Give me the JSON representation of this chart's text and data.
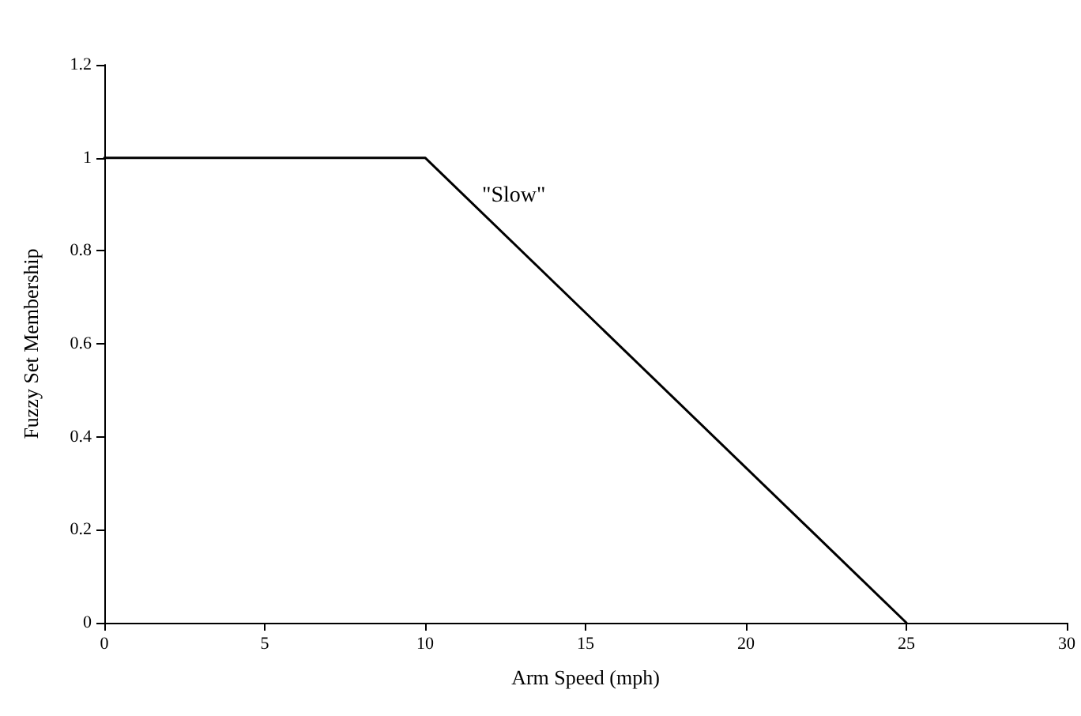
{
  "chart_data": {
    "type": "line",
    "xlabel": "Arm Speed (mph)",
    "ylabel": "Fuzzy Set Membership",
    "x": [
      0,
      10,
      25
    ],
    "series": [
      {
        "color": "#000000",
        "values": [
          1,
          1,
          0
        ]
      }
    ],
    "xlim": [
      0,
      30
    ],
    "xticks": [
      0,
      5,
      10,
      15,
      20,
      25,
      30
    ],
    "ylim": [
      0,
      1.2
    ],
    "yticks": [
      0,
      0.2,
      0.4,
      0.6,
      0.8,
      1,
      1.2
    ],
    "grid": false,
    "marker": "none",
    "line_style": "solid",
    "annotations": [
      "\"Slow\""
    ]
  }
}
